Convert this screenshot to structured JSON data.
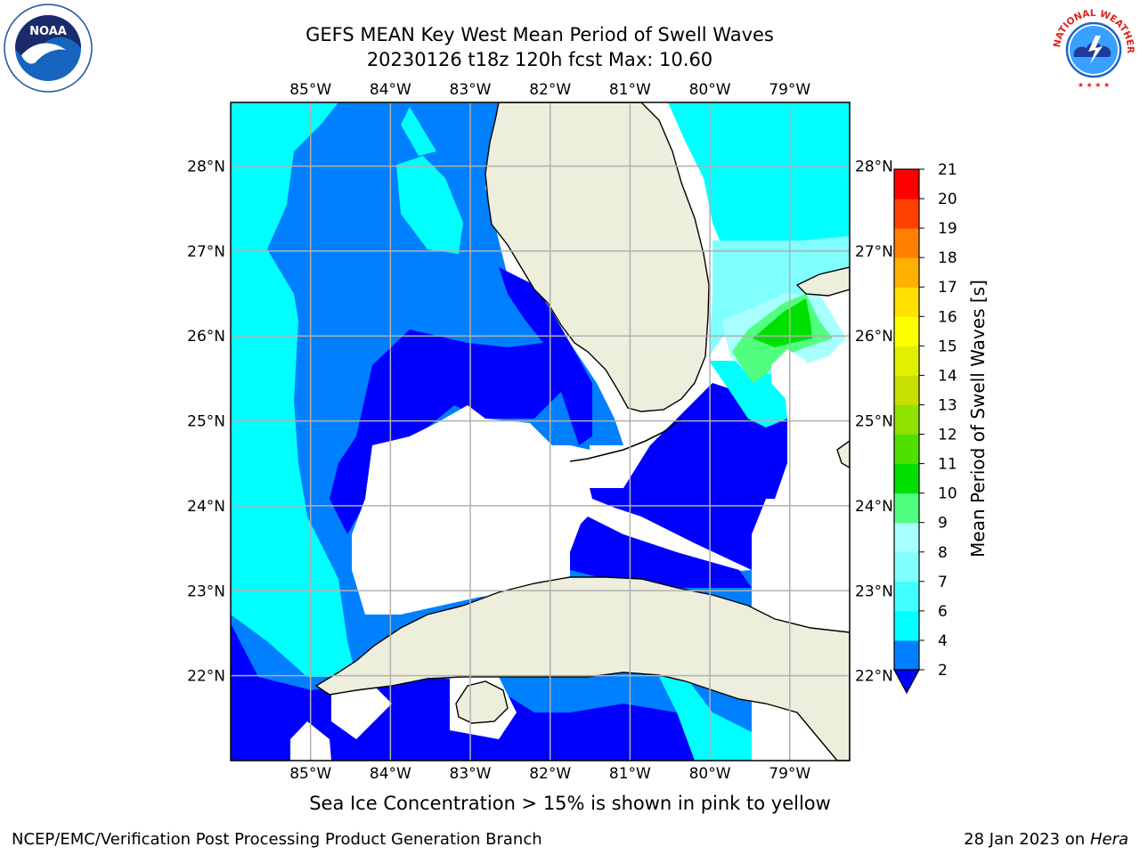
{
  "title": {
    "line1": "GEFS MEAN Key West Mean Period of Swell Waves",
    "line2": "20230126 t18z 120h fcst   Max: 10.60"
  },
  "map": {
    "lon_range": [
      -86.0,
      -78.25
    ],
    "lat_range": [
      21.0,
      28.75
    ],
    "lon_ticks": [
      "85°W",
      "84°W",
      "83°W",
      "82°W",
      "81°W",
      "80°W",
      "79°W"
    ],
    "lon_tick_values": [
      -85,
      -84,
      -83,
      -82,
      -81,
      -80,
      -79
    ],
    "lat_ticks": [
      "28°N",
      "27°N",
      "26°N",
      "25°N",
      "24°N",
      "23°N",
      "22°N"
    ],
    "lat_tick_values": [
      28,
      27,
      26,
      25,
      24,
      23,
      22
    ],
    "grid": true,
    "land_color": "#eeeedc",
    "no_data_color": "#ffffff"
  },
  "colorbar": {
    "label": "Mean Period of Swell Waves [s]",
    "tick_labels": [
      "2",
      "4",
      "6",
      "7",
      "8",
      "9",
      "10",
      "11",
      "12",
      "13",
      "14",
      "15",
      "16",
      "17",
      "18",
      "19",
      "20",
      "21"
    ],
    "colors": [
      "#0000ff",
      "#0080ff",
      "#00ffff",
      "#40ffff",
      "#80ffff",
      "#a8ffff",
      "#50ff80",
      "#00e000",
      "#50e000",
      "#90e000",
      "#c8e000",
      "#e0f000",
      "#ffff00",
      "#ffe000",
      "#ffb000",
      "#ff8000",
      "#ff4000",
      "#ff0000"
    ],
    "extend": "min",
    "under_color": "#0000ff"
  },
  "caption": "Sea Ice Concentration > 15% is shown in pink to yellow",
  "footer": {
    "left": "NCEP/EMC/Verification Post Processing Product Generation Branch",
    "right_date": "28 Jan 2023 on ",
    "right_host": "Hera"
  },
  "logos": {
    "noaa": "NOAA",
    "nws": "NATIONAL WEATHER SERVICE"
  }
}
